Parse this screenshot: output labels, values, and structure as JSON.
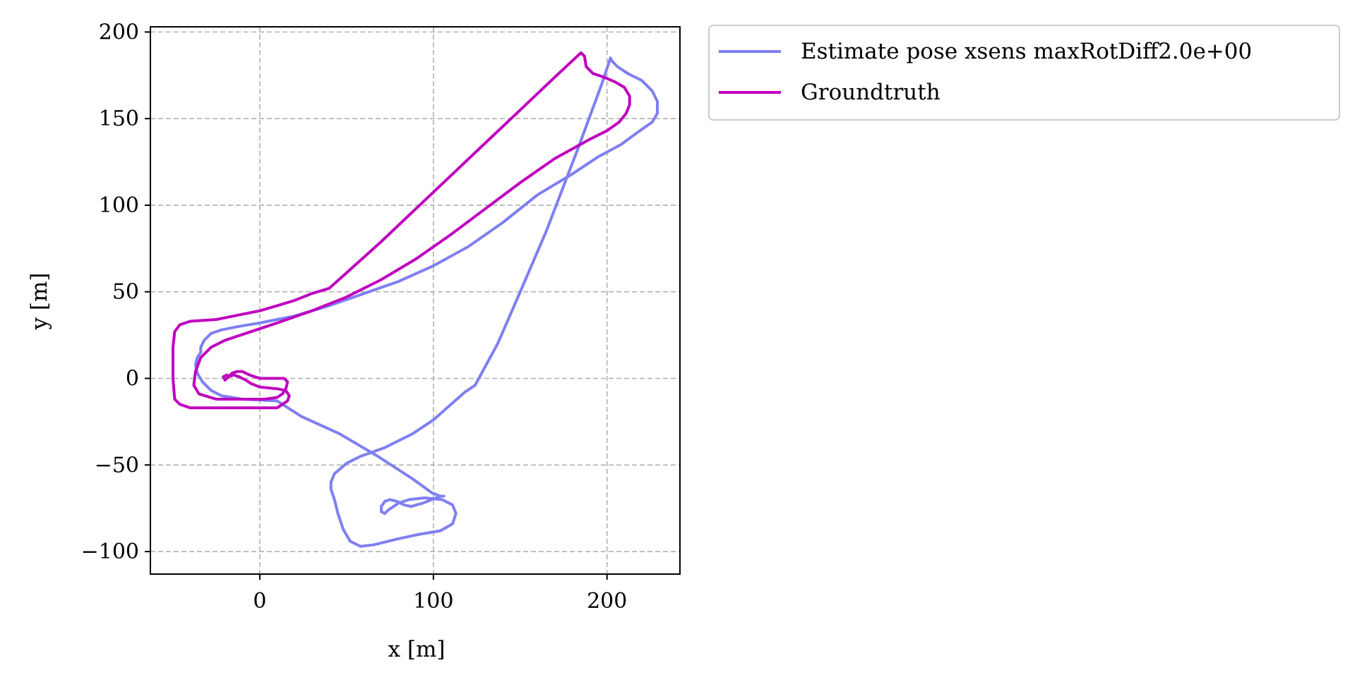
{
  "chart_data": {
    "type": "line",
    "title": "",
    "xlabel": "x [m]",
    "ylabel": "y [m]",
    "xlim": [
      -63,
      242
    ],
    "ylim": [
      -113,
      203
    ],
    "xticks": [
      0,
      100,
      200
    ],
    "yticks": [
      -100,
      -50,
      0,
      50,
      100,
      150,
      200
    ],
    "xtick_labels": [
      "0",
      "100",
      "200"
    ],
    "ytick_labels": [
      "−100",
      "−50",
      "0",
      "50",
      "100",
      "150",
      "200"
    ],
    "grid": true,
    "legend_position": "outside upper right",
    "series": [
      {
        "name": "Estimate pose xsens maxRotDiff2.0e+00",
        "color": "#7f7ff2",
        "x": [
          -34,
          -34,
          -32,
          -28,
          -22,
          -12,
          0,
          20,
          40,
          60,
          80,
          100,
          120,
          140,
          160,
          180,
          195,
          208,
          219,
          226,
          229,
          229,
          226,
          220,
          212,
          206,
          203,
          202,
          197,
          183,
          165,
          150,
          137,
          124,
          118,
          100,
          88,
          72,
          58,
          50,
          43,
          41,
          41,
          43,
          45,
          48,
          52,
          58,
          66,
          78,
          92,
          104,
          111,
          113,
          111,
          105,
          95,
          86,
          80,
          77,
          74,
          72,
          70,
          70,
          72,
          75,
          79,
          83,
          87,
          94,
          99,
          104,
          106,
          104,
          99,
          88,
          68,
          46,
          24,
          10,
          -10,
          -22,
          -28,
          -33,
          -36,
          -37,
          -36,
          -34
        ],
        "y": [
          15,
          18,
          22,
          26,
          28,
          30,
          32,
          36,
          42,
          49,
          56,
          65,
          76,
          90,
          106,
          118,
          128,
          135,
          143,
          148,
          153,
          160,
          166,
          172,
          176,
          180,
          183,
          185,
          170,
          132,
          85,
          50,
          20,
          -4,
          -8,
          -24,
          -32,
          -40,
          -45,
          -49,
          -55,
          -60,
          -64,
          -70,
          -78,
          -87,
          -94,
          -97,
          -96,
          -93,
          -90,
          -88,
          -84,
          -78,
          -73,
          -70,
          -69,
          -70,
          -72,
          -74,
          -76,
          -78,
          -77,
          -74,
          -71,
          -70,
          -71,
          -73,
          -74,
          -72,
          -70,
          -68,
          -68,
          -68,
          -66,
          -58,
          -45,
          -32,
          -22,
          -13,
          -12,
          -10,
          -7,
          -2,
          3,
          8,
          12,
          15
        ]
      },
      {
        "name": "Groundtruth",
        "color": "#bf00bf",
        "x": [
          -18,
          -16,
          -13,
          -10,
          -6,
          0,
          8,
          14,
          16,
          15,
          13,
          10,
          3,
          -10,
          -25,
          -35,
          -38,
          -37,
          -34,
          -28,
          -20,
          -5,
          10,
          30,
          50,
          70,
          90,
          110,
          130,
          150,
          170,
          190,
          200,
          207,
          211,
          213,
          213,
          210,
          205,
          198,
          192,
          188,
          187,
          185,
          170,
          150,
          130,
          110,
          90,
          70,
          60,
          50,
          40,
          30,
          20,
          10,
          0,
          -10,
          -20,
          -25,
          -40,
          -46,
          -49,
          -50,
          -50,
          -49,
          -46,
          -40,
          -30,
          -20,
          -10,
          0,
          10,
          13,
          16,
          17,
          15,
          10,
          0,
          -5,
          -8,
          -12,
          -15,
          -18,
          -20,
          -21,
          -19,
          -18
        ],
        "y": [
          1,
          3,
          4,
          4,
          2,
          0,
          0,
          0,
          -2,
          -6,
          -9,
          -11,
          -12,
          -12,
          -12,
          -9,
          -4,
          4,
          12,
          18,
          22,
          27,
          32,
          39,
          47,
          57,
          69,
          83,
          98,
          113,
          127,
          138,
          143,
          148,
          153,
          158,
          163,
          168,
          171,
          174,
          176,
          180,
          186,
          188,
          174,
          155,
          136,
          117,
          98,
          79,
          70,
          61,
          52,
          49,
          45,
          42,
          39,
          37,
          35,
          34,
          33,
          31,
          27,
          18,
          0,
          -12,
          -15,
          -17,
          -17,
          -17,
          -17,
          -17,
          -17,
          -15,
          -13,
          -10,
          -7,
          -6,
          -5,
          -3,
          -1,
          1,
          2,
          1,
          -1,
          1,
          2,
          1
        ]
      }
    ]
  }
}
